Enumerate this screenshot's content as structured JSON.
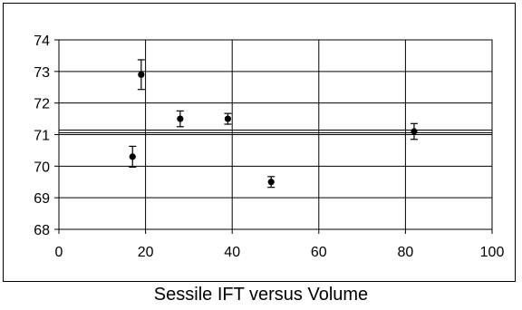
{
  "caption": "Sessile IFT versus Volume",
  "chart_data": {
    "type": "scatter",
    "title": "",
    "xlabel": "",
    "ylabel": "",
    "xlim": [
      0,
      100
    ],
    "ylim": [
      68,
      74
    ],
    "x_ticks": [
      0,
      20,
      40,
      60,
      80,
      100
    ],
    "y_ticks": [
      68,
      69,
      70,
      71,
      72,
      73,
      74
    ],
    "grid": true,
    "legend": "none",
    "marker_color": "#000000",
    "points": [
      {
        "x": 17,
        "y": 70.3,
        "err": 0.33
      },
      {
        "x": 19,
        "y": 72.9,
        "err": 0.47
      },
      {
        "x": 28,
        "y": 71.5,
        "err": 0.25
      },
      {
        "x": 39,
        "y": 71.5,
        "err": 0.17
      },
      {
        "x": 49,
        "y": 69.5,
        "err": 0.17
      },
      {
        "x": 82,
        "y": 71.1,
        "err": 0.25
      }
    ],
    "reference_line": {
      "y": 71.1
    }
  }
}
